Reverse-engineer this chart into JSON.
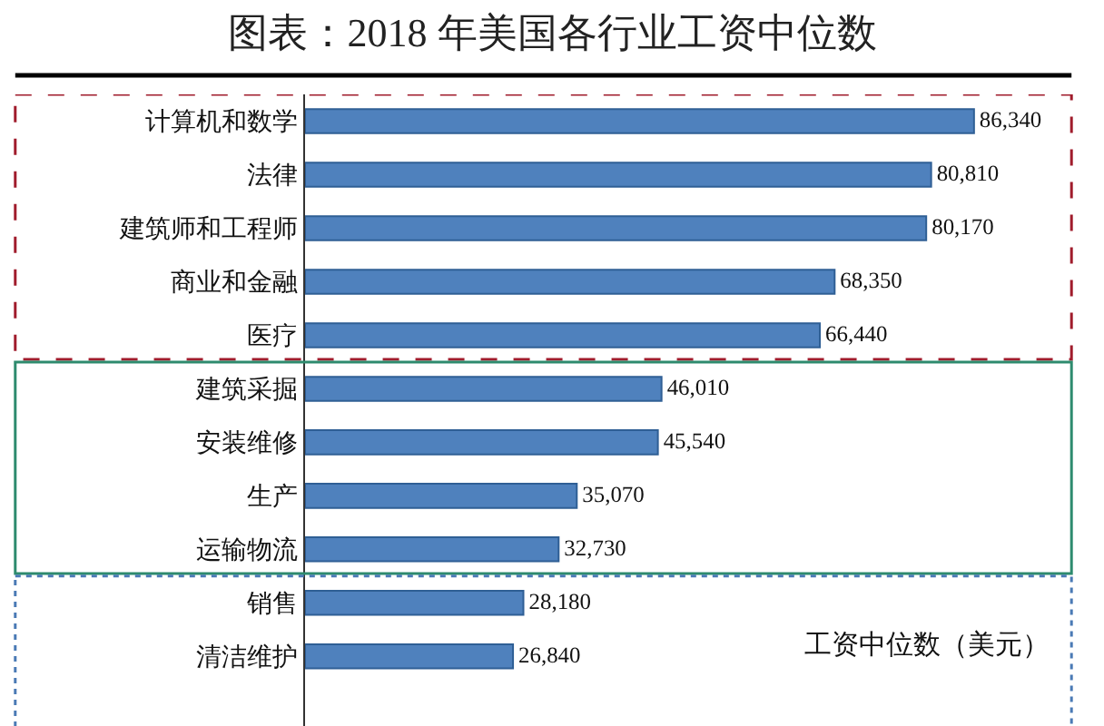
{
  "chart_data": {
    "type": "bar",
    "orientation": "horizontal",
    "title": "图表：2018 年美国各行业工资中位数",
    "categories": [
      "计算机和数学",
      "法律",
      "建筑师和工程师",
      "商业和金融",
      "医疗",
      "建筑采掘",
      "安装维修",
      "生产",
      "运输物流",
      "销售",
      "清洁维护"
    ],
    "values": [
      86340,
      80810,
      80170,
      68350,
      66440,
      46010,
      45540,
      35070,
      32730,
      28180,
      26840
    ],
    "value_labels": [
      "86,340",
      "80,810",
      "80,170",
      "68,350",
      "66,440",
      "46,010",
      "45,540",
      "35,070",
      "32,730",
      "28,180",
      "26,840"
    ],
    "color": "#4f81bd",
    "annotations": [
      "工资中位数（美元）"
    ]
  }
}
